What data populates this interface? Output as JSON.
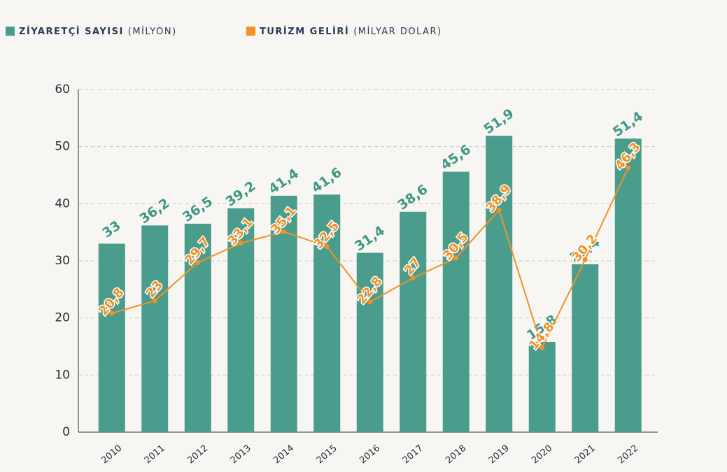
{
  "chart_data": {
    "type": "bar+line",
    "categories": [
      "2010",
      "2011",
      "2012",
      "2013",
      "2014",
      "2015",
      "2016",
      "2017",
      "2018",
      "2019",
      "2020",
      "2021",
      "2022"
    ],
    "series": [
      {
        "name": "ZİYARETÇİ SAYISI",
        "unit": "(MİLYON)",
        "type": "bar",
        "color": "#4a9c8c",
        "values": [
          33,
          36.2,
          36.5,
          39.2,
          41.4,
          41.6,
          31.4,
          38.6,
          45.6,
          51.9,
          15.8,
          29.4,
          51.4
        ],
        "value_labels": [
          "33",
          "36,2",
          "36,5",
          "39,2",
          "41,4",
          "41,6",
          "31,4",
          "38,6",
          "45,6",
          "51,9",
          "15,8",
          "29,4",
          "51,4"
        ]
      },
      {
        "name": "TURİZM GELİRİ",
        "unit": "(MİLYAR DOLAR)",
        "type": "line",
        "color": "#ef9327",
        "values": [
          20.8,
          23,
          29.7,
          33.1,
          35.1,
          32.5,
          22.8,
          27,
          30.5,
          38.9,
          14.8,
          30.2,
          46.3
        ],
        "value_labels": [
          "20,8",
          "23",
          "29,7",
          "33,1",
          "35,1",
          "32,5",
          "22,8",
          "27",
          "30,5",
          "38,9",
          "14,8",
          "30,2",
          "46,3"
        ]
      }
    ],
    "ylim": [
      0,
      60
    ],
    "yticks": [
      0,
      10,
      20,
      30,
      40,
      50,
      60
    ],
    "grid": true
  }
}
